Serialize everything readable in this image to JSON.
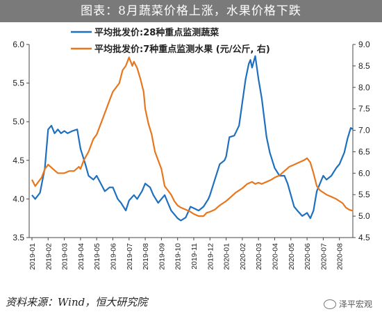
{
  "title": "图表：8月蔬菜价格上涨，水果价格下跌",
  "source": "资料来源：Wind，恒大研究院",
  "watermark": "泽平宏观",
  "chart_data": {
    "type": "line",
    "x_labels": [
      "2019-01",
      "2019-02",
      "2019-03",
      "2019-04",
      "2019-05",
      "2019-06",
      "2019-07",
      "2019-08",
      "2019-09",
      "2019-10",
      "2019-11",
      "2019-12",
      "2020-01",
      "2020-02",
      "2020-03",
      "2020-04",
      "2020-05",
      "2020-06",
      "2020-07",
      "2020-08"
    ],
    "y_left": {
      "min": 3.5,
      "max": 6.0,
      "ticks": [
        "3.5",
        "4.0",
        "4.5",
        "5.0",
        "5.5",
        "6.0"
      ]
    },
    "y_right": {
      "min": 4.5,
      "max": 9.0,
      "ticks": [
        "4.5",
        "5.0",
        "5.5",
        "6.0",
        "6.5",
        "7.0",
        "7.5",
        "8.0",
        "8.5",
        "9.0"
      ]
    },
    "series": [
      {
        "name": "平均批发价:28种重点监测蔬菜",
        "axis": "left",
        "color": "#1f6fbf",
        "points": [
          [
            0.0,
            4.05
          ],
          [
            0.2,
            4.0
          ],
          [
            0.5,
            4.08
          ],
          [
            0.8,
            4.4
          ],
          [
            1.0,
            4.9
          ],
          [
            1.2,
            4.95
          ],
          [
            1.4,
            4.85
          ],
          [
            1.6,
            4.9
          ],
          [
            1.8,
            4.85
          ],
          [
            2.0,
            4.88
          ],
          [
            2.2,
            4.85
          ],
          [
            2.5,
            4.88
          ],
          [
            2.8,
            4.9
          ],
          [
            3.0,
            4.65
          ],
          [
            3.3,
            4.45
          ],
          [
            3.5,
            4.3
          ],
          [
            3.8,
            4.25
          ],
          [
            4.0,
            4.3
          ],
          [
            4.2,
            4.22
          ],
          [
            4.5,
            4.1
          ],
          [
            4.8,
            4.15
          ],
          [
            5.0,
            4.15
          ],
          [
            5.3,
            4.0
          ],
          [
            5.5,
            3.95
          ],
          [
            5.8,
            3.85
          ],
          [
            6.0,
            3.98
          ],
          [
            6.3,
            4.05
          ],
          [
            6.5,
            4.0
          ],
          [
            6.8,
            4.1
          ],
          [
            7.0,
            4.2
          ],
          [
            7.3,
            4.15
          ],
          [
            7.5,
            4.05
          ],
          [
            7.8,
            3.95
          ],
          [
            8.0,
            4.0
          ],
          [
            8.2,
            4.05
          ],
          [
            8.4,
            3.95
          ],
          [
            8.6,
            3.85
          ],
          [
            8.8,
            3.8
          ],
          [
            9.0,
            3.75
          ],
          [
            9.2,
            3.72
          ],
          [
            9.5,
            3.76
          ],
          [
            9.8,
            3.9
          ],
          [
            10.0,
            3.88
          ],
          [
            10.3,
            3.85
          ],
          [
            10.6,
            3.9
          ],
          [
            10.9,
            4.0
          ],
          [
            11.0,
            4.05
          ],
          [
            11.3,
            4.25
          ],
          [
            11.6,
            4.45
          ],
          [
            11.9,
            4.5
          ],
          [
            12.0,
            4.55
          ],
          [
            12.2,
            4.8
          ],
          [
            12.5,
            4.82
          ],
          [
            12.8,
            4.95
          ],
          [
            13.0,
            5.25
          ],
          [
            13.2,
            5.55
          ],
          [
            13.4,
            5.75
          ],
          [
            13.5,
            5.8
          ],
          [
            13.6,
            5.7
          ],
          [
            13.8,
            5.85
          ],
          [
            14.0,
            5.55
          ],
          [
            14.2,
            5.3
          ],
          [
            14.5,
            4.8
          ],
          [
            14.7,
            4.6
          ],
          [
            15.0,
            4.4
          ],
          [
            15.3,
            4.3
          ],
          [
            15.6,
            4.3
          ],
          [
            15.8,
            4.2
          ],
          [
            16.0,
            4.05
          ],
          [
            16.2,
            3.9
          ],
          [
            16.4,
            3.85
          ],
          [
            16.7,
            3.78
          ],
          [
            17.0,
            3.82
          ],
          [
            17.2,
            3.75
          ],
          [
            17.4,
            3.85
          ],
          [
            17.6,
            4.1
          ],
          [
            17.8,
            4.2
          ],
          [
            18.0,
            4.3
          ],
          [
            18.2,
            4.25
          ],
          [
            18.5,
            4.3
          ],
          [
            18.8,
            4.4
          ],
          [
            19.0,
            4.45
          ],
          [
            19.3,
            4.6
          ],
          [
            19.5,
            4.78
          ],
          [
            19.7,
            4.92
          ],
          [
            19.85,
            4.9
          ]
        ]
      },
      {
        "name": "平均批发价:7种重点监测水果 (元/公斤, 右)",
        "axis": "right",
        "color": "#e8761d",
        "points": [
          [
            0.0,
            5.85
          ],
          [
            0.2,
            5.7
          ],
          [
            0.4,
            5.8
          ],
          [
            0.6,
            5.9
          ],
          [
            0.8,
            6.1
          ],
          [
            1.0,
            6.2
          ],
          [
            1.3,
            6.1
          ],
          [
            1.6,
            6.0
          ],
          [
            2.0,
            6.0
          ],
          [
            2.3,
            6.05
          ],
          [
            2.6,
            6.05
          ],
          [
            2.9,
            6.15
          ],
          [
            3.0,
            6.1
          ],
          [
            3.2,
            6.3
          ],
          [
            3.5,
            6.5
          ],
          [
            3.8,
            6.8
          ],
          [
            4.0,
            6.9
          ],
          [
            4.2,
            7.1
          ],
          [
            4.5,
            7.4
          ],
          [
            4.8,
            7.7
          ],
          [
            5.0,
            7.9
          ],
          [
            5.2,
            8.0
          ],
          [
            5.4,
            8.1
          ],
          [
            5.6,
            8.4
          ],
          [
            5.8,
            8.5
          ],
          [
            6.0,
            8.7
          ],
          [
            6.2,
            8.5
          ],
          [
            6.3,
            8.6
          ],
          [
            6.5,
            8.45
          ],
          [
            6.7,
            8.2
          ],
          [
            6.9,
            7.9
          ],
          [
            7.0,
            7.5
          ],
          [
            7.2,
            7.15
          ],
          [
            7.4,
            6.9
          ],
          [
            7.6,
            6.5
          ],
          [
            7.8,
            6.3
          ],
          [
            8.0,
            6.1
          ],
          [
            8.2,
            5.7
          ],
          [
            8.4,
            5.6
          ],
          [
            8.6,
            5.5
          ],
          [
            8.8,
            5.35
          ],
          [
            9.0,
            5.25
          ],
          [
            9.2,
            5.2
          ],
          [
            9.5,
            5.15
          ],
          [
            9.8,
            5.1
          ],
          [
            10.0,
            5.05
          ],
          [
            10.3,
            5.0
          ],
          [
            10.6,
            5.0
          ],
          [
            10.8,
            5.08
          ],
          [
            11.0,
            5.1
          ],
          [
            11.3,
            5.15
          ],
          [
            11.6,
            5.25
          ],
          [
            12.0,
            5.35
          ],
          [
            12.3,
            5.45
          ],
          [
            12.6,
            5.55
          ],
          [
            13.0,
            5.65
          ],
          [
            13.3,
            5.75
          ],
          [
            13.6,
            5.8
          ],
          [
            13.8,
            5.75
          ],
          [
            14.0,
            5.78
          ],
          [
            14.2,
            5.75
          ],
          [
            14.5,
            5.8
          ],
          [
            14.8,
            5.85
          ],
          [
            15.0,
            5.9
          ],
          [
            15.3,
            5.95
          ],
          [
            15.6,
            6.05
          ],
          [
            15.9,
            6.15
          ],
          [
            16.2,
            6.2
          ],
          [
            16.5,
            6.25
          ],
          [
            16.8,
            6.3
          ],
          [
            17.0,
            6.35
          ],
          [
            17.2,
            6.25
          ],
          [
            17.4,
            6.0
          ],
          [
            17.6,
            5.7
          ],
          [
            17.8,
            5.6
          ],
          [
            18.0,
            5.55
          ],
          [
            18.2,
            5.5
          ],
          [
            18.5,
            5.45
          ],
          [
            18.8,
            5.4
          ],
          [
            19.0,
            5.35
          ],
          [
            19.2,
            5.3
          ],
          [
            19.4,
            5.2
          ],
          [
            19.6,
            5.15
          ],
          [
            19.85,
            5.12
          ]
        ]
      }
    ]
  }
}
